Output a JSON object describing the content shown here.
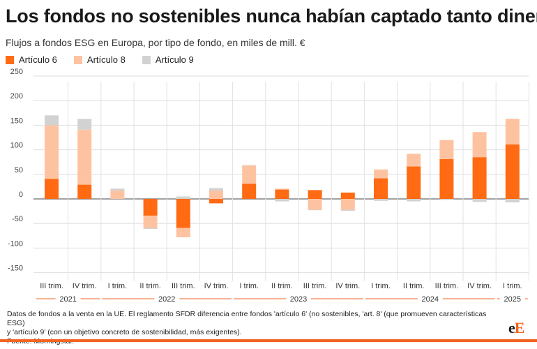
{
  "title": "Los fondos no sostenibles nunca habían captado tanto dinero",
  "subtitle": "Flujos a fondos ESG en Europa, por tipo de fondo, en miles de mill. €",
  "colors": {
    "articulo6": "#ff6a13",
    "articulo8": "#fdc3a0",
    "articulo9": "#d2d2d2",
    "accent": "#f26522"
  },
  "legend": [
    {
      "label": "Artículo 6",
      "series": "articulo6"
    },
    {
      "label": "Artículo 8",
      "series": "articulo8"
    },
    {
      "label": "Artículo 9",
      "series": "articulo9"
    }
  ],
  "chart_data": {
    "type": "bar",
    "stacked": true,
    "title": "Los fondos no sostenibles nunca habían captado tanto dinero",
    "ylabel": "miles de mill. €",
    "ylim": [
      -150,
      250
    ],
    "yticks": [
      250,
      200,
      150,
      100,
      50,
      0,
      -50,
      -100,
      -150
    ],
    "grid": true,
    "categories": [
      "III trim.",
      "IV trim.",
      "I trim.",
      "II trim.",
      "III trim.",
      "IV trim.",
      "I trim.",
      "II trim.",
      "III trim.",
      "IV trim.",
      "I trim.",
      "II trim.",
      "III trim.",
      "IV trim.",
      "I trim."
    ],
    "years": [
      {
        "label": "2021",
        "start": 0,
        "end": 1
      },
      {
        "label": "2022",
        "start": 2,
        "end": 5
      },
      {
        "label": "2023",
        "start": 6,
        "end": 9
      },
      {
        "label": "2024",
        "start": 10,
        "end": 13
      },
      {
        "label": "2025",
        "start": 14,
        "end": 14
      }
    ],
    "series": [
      {
        "name": "Artículo 6",
        "key": "articulo6",
        "values": [
          41,
          29,
          0,
          -34,
          -59,
          -9,
          31,
          19,
          18,
          13,
          42,
          66,
          81,
          85,
          111
        ]
      },
      {
        "name": "Artículo 8",
        "key": "articulo8",
        "values": [
          109,
          112,
          17,
          -25,
          -19,
          17,
          37,
          2,
          -22,
          -22,
          18,
          26,
          39,
          51,
          52
        ]
      },
      {
        "name": "Artículo 9",
        "key": "articulo9",
        "values": [
          20,
          22,
          4,
          -2,
          5,
          5,
          1,
          -5,
          -1,
          -2,
          -4,
          -5,
          -2,
          -6,
          -7
        ]
      }
    ]
  },
  "footnote": {
    "line1": "Datos de fondos a la venta en la UE. El reglamento SFDR diferencia entre fondos 'artículo 6' (no sostenibles, 'art. 8' (que promueven características ESG)",
    "line2": "y 'artículo 9' (con un objetivo concreto de sostenibilidad, más exigentes).",
    "source": "Fuente: Morningstar."
  },
  "logo": {
    "first": "e",
    "second": "E"
  }
}
